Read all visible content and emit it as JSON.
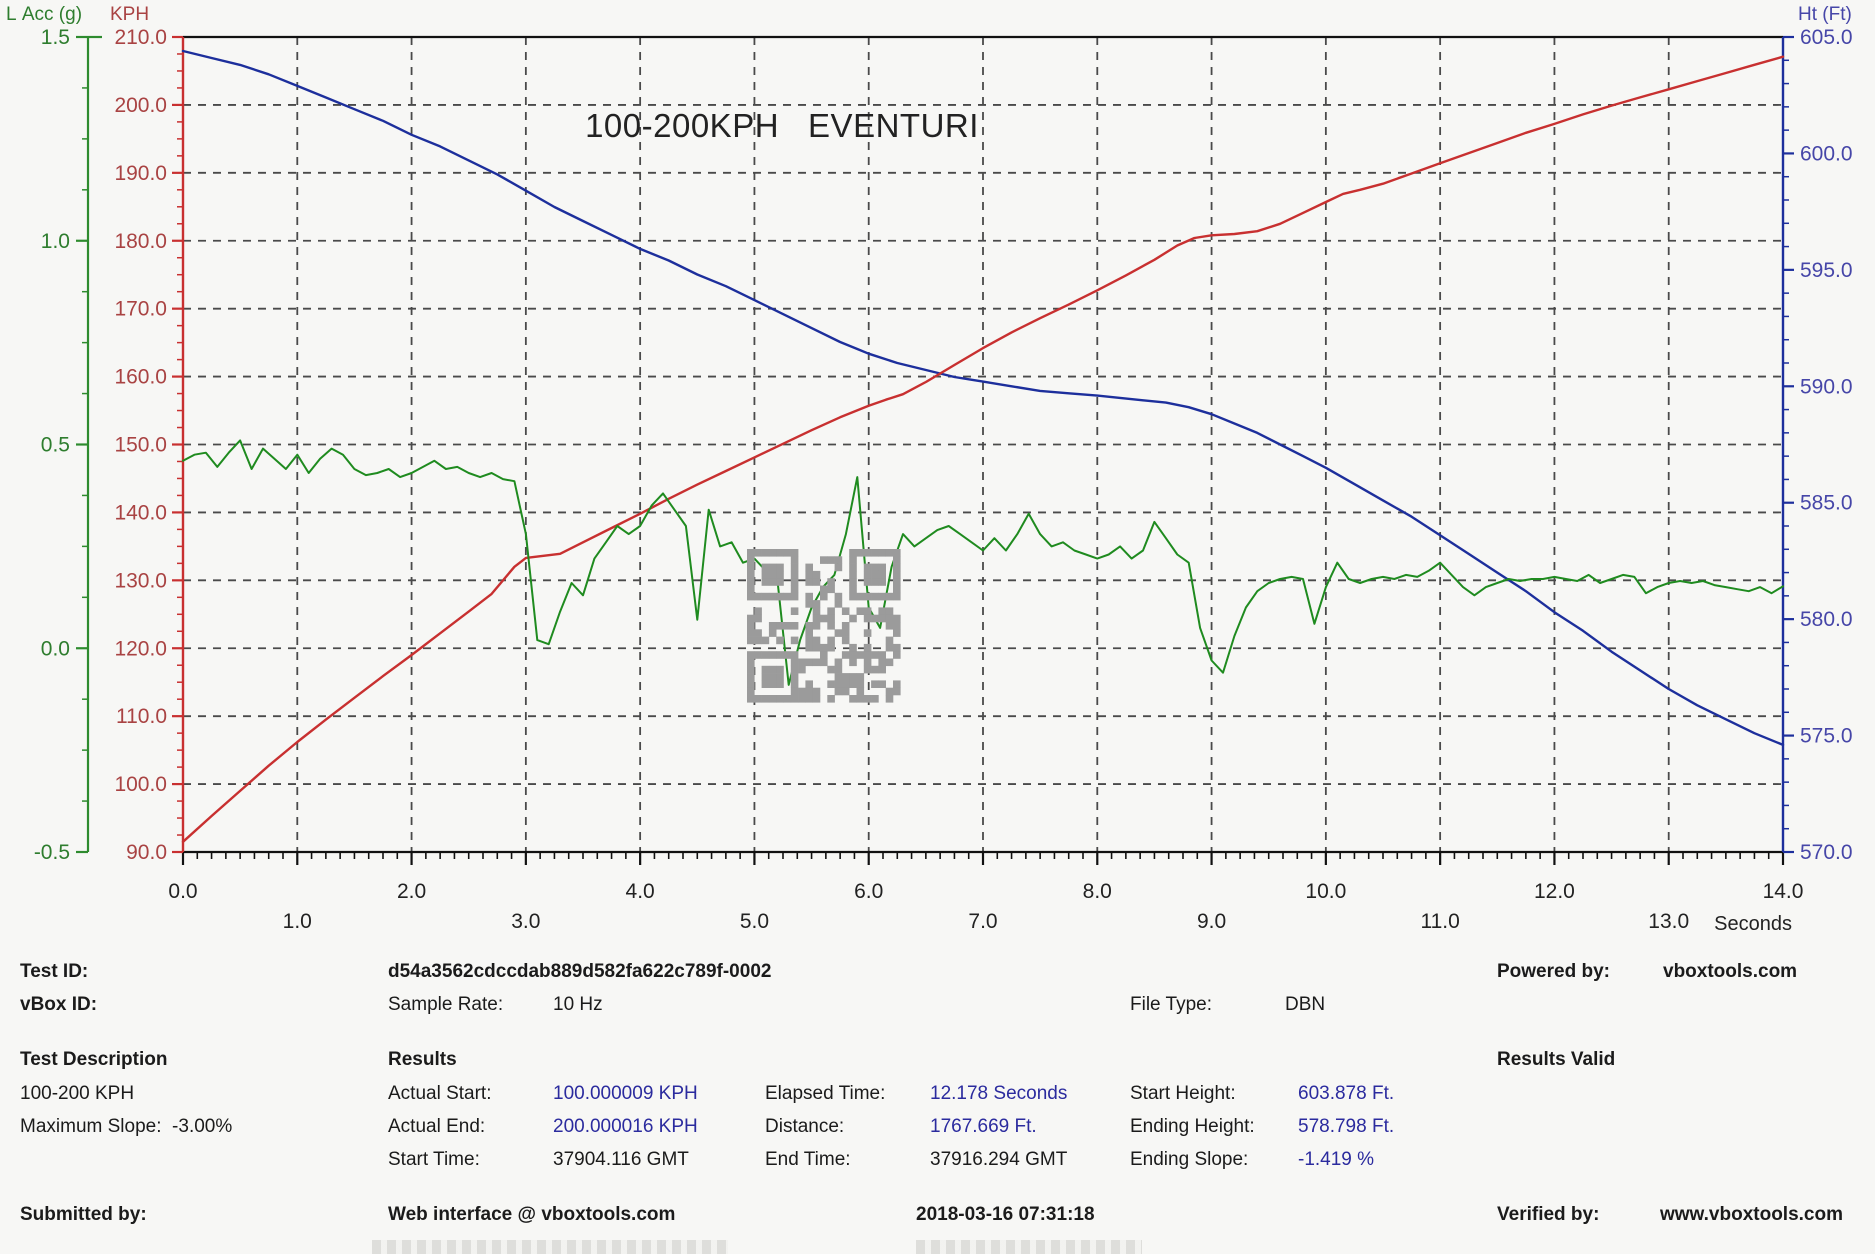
{
  "chart_data": {
    "type": "line",
    "title": "100-200KPH   EVENTURI",
    "x_axis": {
      "label": "Seconds",
      "min": 0,
      "max": 14,
      "major_tick": 1.0,
      "minor_tick": 0.125
    },
    "left_axis_acc": {
      "label": "L Acc (g)",
      "min": -0.5,
      "max": 1.5,
      "major_tick": 0.5,
      "minor_tick": 0.125,
      "text_color": "#2e7d2e",
      "line_color": "#2e8b2e"
    },
    "left_axis_kph": {
      "label": "KPH",
      "min": 90,
      "max": 210,
      "major_tick": 10,
      "minor_tick": 2.5,
      "text_color": "#a94343",
      "line_color": "#c83030"
    },
    "right_axis_ht": {
      "label": "Ht (Ft)",
      "min": 570,
      "max": 605,
      "major_tick": 5,
      "minor_tick": 1,
      "text_color": "#4646a8",
      "line_color": "#1d2f9c"
    },
    "grid": {
      "show": true,
      "color": "#4a4a4a",
      "style": "dashed"
    },
    "series": [
      {
        "name": "height_ft",
        "axis": "ht",
        "color": "#1d2f9c",
        "width": 2.4,
        "points": [
          [
            0,
            604.4
          ],
          [
            0.25,
            604.1
          ],
          [
            0.5,
            603.8
          ],
          [
            0.75,
            603.4
          ],
          [
            1,
            602.9
          ],
          [
            1.25,
            602.4
          ],
          [
            1.5,
            601.9
          ],
          [
            1.75,
            601.4
          ],
          [
            2,
            600.8
          ],
          [
            2.25,
            600.3
          ],
          [
            2.5,
            599.7
          ],
          [
            2.75,
            599.1
          ],
          [
            3,
            598.4
          ],
          [
            3.25,
            597.7
          ],
          [
            3.5,
            597.1
          ],
          [
            3.75,
            596.5
          ],
          [
            4,
            595.9
          ],
          [
            4.25,
            595.4
          ],
          [
            4.5,
            594.8
          ],
          [
            4.75,
            594.3
          ],
          [
            5,
            593.7
          ],
          [
            5.25,
            593.1
          ],
          [
            5.5,
            592.5
          ],
          [
            5.75,
            591.9
          ],
          [
            5.9,
            591.6
          ],
          [
            6,
            591.4
          ],
          [
            6.25,
            591.0
          ],
          [
            6.5,
            590.7
          ],
          [
            6.75,
            590.4
          ],
          [
            7,
            590.2
          ],
          [
            7.25,
            590.0
          ],
          [
            7.5,
            589.8
          ],
          [
            7.75,
            589.7
          ],
          [
            8,
            589.6
          ],
          [
            8.2,
            589.5
          ],
          [
            8.4,
            589.4
          ],
          [
            8.6,
            589.3
          ],
          [
            8.8,
            589.1
          ],
          [
            9,
            588.8
          ],
          [
            9.2,
            588.4
          ],
          [
            9.4,
            588.0
          ],
          [
            9.6,
            587.5
          ],
          [
            9.8,
            587.0
          ],
          [
            10,
            586.5
          ],
          [
            10.25,
            585.8
          ],
          [
            10.5,
            585.1
          ],
          [
            10.75,
            584.4
          ],
          [
            11,
            583.6
          ],
          [
            11.25,
            582.8
          ],
          [
            11.5,
            582.0
          ],
          [
            11.75,
            581.2
          ],
          [
            12,
            580.3
          ],
          [
            12.25,
            579.5
          ],
          [
            12.5,
            578.6
          ],
          [
            12.75,
            577.8
          ],
          [
            13,
            577.0
          ],
          [
            13.25,
            576.3
          ],
          [
            13.5,
            575.7
          ],
          [
            13.75,
            575.1
          ],
          [
            14,
            574.6
          ]
        ]
      },
      {
        "name": "speed_kph",
        "axis": "kph",
        "color": "#c83030",
        "width": 2.4,
        "points": [
          [
            0,
            91.5
          ],
          [
            0.25,
            95.3
          ],
          [
            0.5,
            99.0
          ],
          [
            0.75,
            102.7
          ],
          [
            1,
            106.2
          ],
          [
            1.25,
            109.5
          ],
          [
            1.5,
            112.7
          ],
          [
            1.75,
            115.9
          ],
          [
            2,
            119.0
          ],
          [
            2.25,
            122.2
          ],
          [
            2.5,
            125.4
          ],
          [
            2.7,
            128.0
          ],
          [
            2.9,
            132.0
          ],
          [
            3.0,
            133.3
          ],
          [
            3.1,
            133.5
          ],
          [
            3.3,
            133.9
          ],
          [
            3.5,
            135.6
          ],
          [
            3.75,
            137.7
          ],
          [
            4,
            139.8
          ],
          [
            4.25,
            142.0
          ],
          [
            4.5,
            144.1
          ],
          [
            4.75,
            146.1
          ],
          [
            5,
            148.1
          ],
          [
            5.25,
            150.1
          ],
          [
            5.5,
            152.1
          ],
          [
            5.75,
            154.0
          ],
          [
            6,
            155.7
          ],
          [
            6.15,
            156.6
          ],
          [
            6.3,
            157.4
          ],
          [
            6.5,
            159.2
          ],
          [
            6.75,
            161.7
          ],
          [
            7,
            164.2
          ],
          [
            7.25,
            166.5
          ],
          [
            7.5,
            168.6
          ],
          [
            7.75,
            170.6
          ],
          [
            8,
            172.7
          ],
          [
            8.25,
            174.9
          ],
          [
            8.5,
            177.2
          ],
          [
            8.7,
            179.3
          ],
          [
            8.85,
            180.4
          ],
          [
            9,
            180.8
          ],
          [
            9.2,
            181.0
          ],
          [
            9.4,
            181.4
          ],
          [
            9.6,
            182.5
          ],
          [
            9.8,
            184.1
          ],
          [
            10,
            185.7
          ],
          [
            10.15,
            186.9
          ],
          [
            10.3,
            187.5
          ],
          [
            10.5,
            188.4
          ],
          [
            10.75,
            189.9
          ],
          [
            11,
            191.4
          ],
          [
            11.25,
            192.9
          ],
          [
            11.5,
            194.4
          ],
          [
            11.75,
            195.9
          ],
          [
            12,
            197.2
          ],
          [
            12.25,
            198.6
          ],
          [
            12.5,
            199.9
          ],
          [
            12.75,
            201.1
          ],
          [
            13,
            202.3
          ],
          [
            13.25,
            203.5
          ],
          [
            13.5,
            204.7
          ],
          [
            13.75,
            205.9
          ],
          [
            14,
            207.1
          ]
        ]
      },
      {
        "name": "lateral_acceleration_g",
        "axis": "acc",
        "color": "#1f8b1f",
        "width": 2.0,
        "points": [
          [
            0.0,
            0.46
          ],
          [
            0.1,
            0.475
          ],
          [
            0.2,
            0.48
          ],
          [
            0.3,
            0.445
          ],
          [
            0.4,
            0.48
          ],
          [
            0.5,
            0.51
          ],
          [
            0.6,
            0.44
          ],
          [
            0.7,
            0.49
          ],
          [
            0.8,
            0.465
          ],
          [
            0.9,
            0.44
          ],
          [
            1.0,
            0.475
          ],
          [
            1.1,
            0.43
          ],
          [
            1.2,
            0.465
          ],
          [
            1.3,
            0.49
          ],
          [
            1.4,
            0.475
          ],
          [
            1.5,
            0.44
          ],
          [
            1.6,
            0.425
          ],
          [
            1.7,
            0.43
          ],
          [
            1.8,
            0.44
          ],
          [
            1.9,
            0.42
          ],
          [
            2.0,
            0.43
          ],
          [
            2.1,
            0.445
          ],
          [
            2.2,
            0.46
          ],
          [
            2.3,
            0.44
          ],
          [
            2.4,
            0.445
          ],
          [
            2.5,
            0.43
          ],
          [
            2.6,
            0.42
          ],
          [
            2.7,
            0.43
          ],
          [
            2.8,
            0.415
          ],
          [
            2.9,
            0.41
          ],
          [
            3.0,
            0.28
          ],
          [
            3.1,
            0.02
          ],
          [
            3.2,
            0.01
          ],
          [
            3.3,
            0.09
          ],
          [
            3.4,
            0.16
          ],
          [
            3.5,
            0.13
          ],
          [
            3.6,
            0.22
          ],
          [
            3.7,
            0.26
          ],
          [
            3.8,
            0.3
          ],
          [
            3.9,
            0.28
          ],
          [
            4.0,
            0.3
          ],
          [
            4.1,
            0.35
          ],
          [
            4.2,
            0.38
          ],
          [
            4.3,
            0.34
          ],
          [
            4.4,
            0.3
          ],
          [
            4.5,
            0.07
          ],
          [
            4.6,
            0.34
          ],
          [
            4.7,
            0.25
          ],
          [
            4.8,
            0.26
          ],
          [
            4.9,
            0.21
          ],
          [
            5.0,
            0.22
          ],
          [
            5.1,
            0.19
          ],
          [
            5.2,
            0.17
          ],
          [
            5.3,
            -0.09
          ],
          [
            5.4,
            0.02
          ],
          [
            5.5,
            0.1
          ],
          [
            5.6,
            0.15
          ],
          [
            5.7,
            0.18
          ],
          [
            5.8,
            0.28
          ],
          [
            5.9,
            0.42
          ],
          [
            6.0,
            0.1
          ],
          [
            6.1,
            0.05
          ],
          [
            6.2,
            0.2
          ],
          [
            6.3,
            0.28
          ],
          [
            6.4,
            0.25
          ],
          [
            6.5,
            0.27
          ],
          [
            6.6,
            0.29
          ],
          [
            6.7,
            0.3
          ],
          [
            6.8,
            0.28
          ],
          [
            6.9,
            0.26
          ],
          [
            7.0,
            0.24
          ],
          [
            7.1,
            0.27
          ],
          [
            7.2,
            0.24
          ],
          [
            7.3,
            0.28
          ],
          [
            7.4,
            0.33
          ],
          [
            7.5,
            0.28
          ],
          [
            7.6,
            0.25
          ],
          [
            7.7,
            0.26
          ],
          [
            7.8,
            0.24
          ],
          [
            7.9,
            0.23
          ],
          [
            8.0,
            0.22
          ],
          [
            8.1,
            0.23
          ],
          [
            8.2,
            0.25
          ],
          [
            8.3,
            0.22
          ],
          [
            8.4,
            0.24
          ],
          [
            8.5,
            0.31
          ],
          [
            8.6,
            0.27
          ],
          [
            8.7,
            0.23
          ],
          [
            8.8,
            0.21
          ],
          [
            8.9,
            0.05
          ],
          [
            9.0,
            -0.03
          ],
          [
            9.1,
            -0.06
          ],
          [
            9.2,
            0.03
          ],
          [
            9.3,
            0.1
          ],
          [
            9.4,
            0.14
          ],
          [
            9.5,
            0.16
          ],
          [
            9.6,
            0.17
          ],
          [
            9.7,
            0.175
          ],
          [
            9.8,
            0.17
          ],
          [
            9.9,
            0.06
          ],
          [
            10.0,
            0.15
          ],
          [
            10.1,
            0.21
          ],
          [
            10.2,
            0.17
          ],
          [
            10.3,
            0.16
          ],
          [
            10.4,
            0.17
          ],
          [
            10.5,
            0.175
          ],
          [
            10.6,
            0.17
          ],
          [
            10.7,
            0.18
          ],
          [
            10.8,
            0.175
          ],
          [
            10.9,
            0.19
          ],
          [
            11.0,
            0.21
          ],
          [
            11.1,
            0.18
          ],
          [
            11.2,
            0.15
          ],
          [
            11.3,
            0.13
          ],
          [
            11.4,
            0.15
          ],
          [
            11.5,
            0.16
          ],
          [
            11.6,
            0.17
          ],
          [
            11.7,
            0.165
          ],
          [
            11.8,
            0.17
          ],
          [
            11.9,
            0.17
          ],
          [
            12.0,
            0.175
          ],
          [
            12.1,
            0.17
          ],
          [
            12.2,
            0.165
          ],
          [
            12.3,
            0.18
          ],
          [
            12.4,
            0.16
          ],
          [
            12.5,
            0.17
          ],
          [
            12.6,
            0.18
          ],
          [
            12.7,
            0.175
          ],
          [
            12.8,
            0.135
          ],
          [
            12.9,
            0.15
          ],
          [
            13.0,
            0.16
          ],
          [
            13.1,
            0.165
          ],
          [
            13.2,
            0.16
          ],
          [
            13.3,
            0.165
          ],
          [
            13.4,
            0.155
          ],
          [
            13.5,
            0.15
          ],
          [
            13.6,
            0.145
          ],
          [
            13.7,
            0.14
          ],
          [
            13.8,
            0.15
          ],
          [
            13.9,
            0.135
          ],
          [
            14.0,
            0.152
          ]
        ]
      }
    ]
  },
  "qr_code": {
    "present": true,
    "color": "#9b9b9b"
  },
  "info": {
    "test_id": {
      "label": "Test ID:",
      "value": "d54a3562cdccdab889d582fa622c789f-0002"
    },
    "vbox_id": {
      "label": "vBox ID:"
    },
    "sample_rate": {
      "label": "Sample Rate:",
      "value": "10 Hz"
    },
    "file_type": {
      "label": "File Type:",
      "value": "DBN"
    },
    "powered_by": {
      "label": "Powered by:",
      "value": "vboxtools.com"
    },
    "test_description_heading": "Test Description",
    "test_description_line1": "100-200 KPH",
    "test_description_line2": "Maximum Slope:  -3.00%",
    "results_heading": "Results",
    "results_valid": "Results Valid",
    "actual_start": {
      "label": "Actual Start:",
      "value": "100.000009 KPH"
    },
    "actual_end": {
      "label": "Actual End:",
      "value": "200.000016 KPH"
    },
    "start_time": {
      "label": "Start Time:",
      "value": "37904.116 GMT"
    },
    "elapsed_time": {
      "label": "Elapsed Time:",
      "value": "12.178 Seconds"
    },
    "distance": {
      "label": "Distance:",
      "value": "1767.669 Ft."
    },
    "end_time": {
      "label": "End Time:",
      "value": "37916.294 GMT"
    },
    "start_height": {
      "label": "Start Height:",
      "value": "603.878 Ft."
    },
    "ending_height": {
      "label": "Ending Height:",
      "value": "578.798 Ft."
    },
    "ending_slope": {
      "label": "Ending Slope:",
      "value": "-1.419 %"
    },
    "submitted_by": {
      "label": "Submitted by:",
      "value": "Web interface @ vboxtools.com"
    },
    "timestamp": "2018-03-16 07:31:18",
    "verified_by": {
      "label": "Verified by:",
      "value": "www.vboxtools.com"
    }
  }
}
